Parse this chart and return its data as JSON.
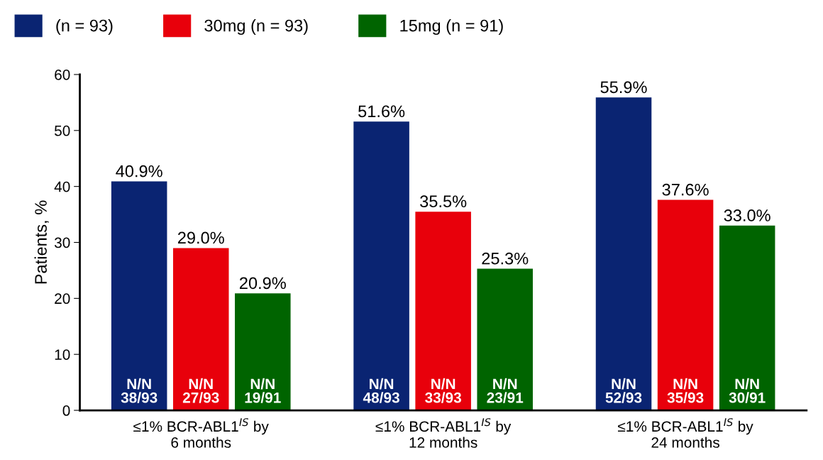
{
  "chart_data": {
    "type": "bar",
    "ylabel": "Patients, %",
    "categories": [
      "≤1% BCR-ABL1$^{IS}$ by\n6 months",
      "≤1% BCR-ABL1$^{IS}$ by\n12 months",
      "≤1% BCR-ABL1$^{IS}$ by\n24 months"
    ],
    "series": [
      {
        "name": "(n = 93)",
        "color": "#0a2472",
        "values": [
          40.9,
          51.6,
          55.9
        ],
        "value_labels": [
          "40.9%",
          "51.6%",
          "55.9%"
        ]
      },
      {
        "name": "30mg (n = 93)",
        "color": "#e8000b",
        "values": [
          29.0,
          35.5,
          37.6
        ],
        "value_labels": [
          "29.0%",
          "35.5%",
          "37.6%"
        ]
      },
      {
        "name": "15mg (n = 91)",
        "color": "#006400",
        "values": [
          20.9,
          25.3,
          33.0
        ],
        "value_labels": [
          "20.9%",
          "25.3%",
          "33.0%"
        ]
      }
    ],
    "annotations": [
      "N/N\n38/93",
      "N/N\n48/93",
      "N/N\n52/93",
      "N/N\n27/93",
      "N/N\n33/93",
      "N/N\n35/93",
      "N/N\n19/91",
      "N/N\n23/91",
      "N/N\n30/91"
    ],
    "ylim": [
      0,
      60
    ],
    "yticks": [
      0,
      10,
      20,
      30,
      40,
      50,
      60
    ],
    "legend": "top left",
    "grid": false
  }
}
